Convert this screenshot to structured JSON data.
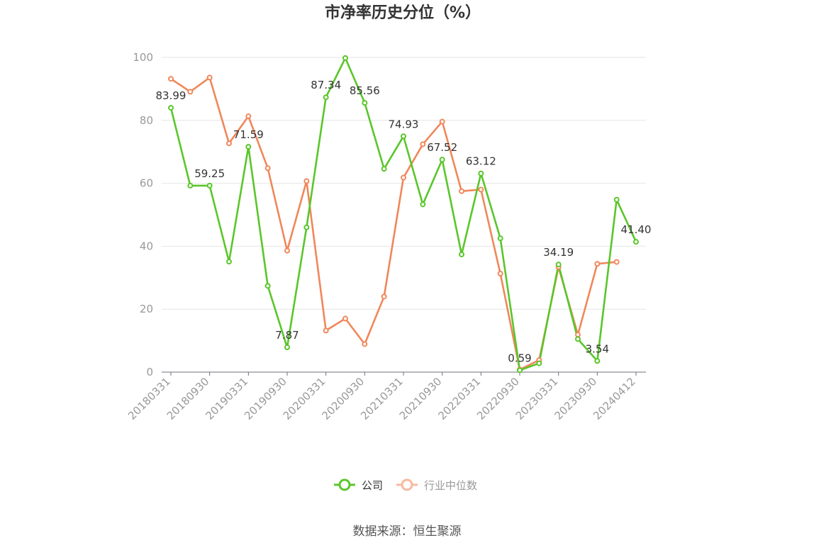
{
  "chart_data": {
    "type": "line",
    "title": "市净率历史分位（%）",
    "xlabel": "",
    "ylabel": "",
    "ylim": [
      0,
      100
    ],
    "yticks": [
      0,
      20,
      40,
      60,
      80,
      100
    ],
    "x": [
      "20180331",
      "20180630",
      "20180930",
      "20181231",
      "20190331",
      "20190630",
      "20190930",
      "20191231",
      "20200331",
      "20200630",
      "20200930",
      "20201231",
      "20210331",
      "20210630",
      "20210930",
      "20211231",
      "20220331",
      "20220630",
      "20220930",
      "20221231",
      "20230331",
      "20230630",
      "20230930",
      "20231231",
      "20240412"
    ],
    "xtick_labels": [
      "20180331",
      "20180930",
      "20190331",
      "20190930",
      "20200331",
      "20200930",
      "20210331",
      "20210930",
      "20220331",
      "20220930",
      "20230331",
      "20230930",
      "20240412"
    ],
    "series": [
      {
        "name": "公司",
        "color": "#5ac62a",
        "values": [
          83.99,
          59.25,
          59.25,
          35.1,
          71.59,
          27.4,
          7.87,
          46.0,
          87.34,
          99.8,
          85.56,
          64.6,
          74.93,
          53.3,
          67.52,
          37.4,
          63.12,
          42.5,
          0.59,
          2.8,
          34.19,
          10.5,
          3.54,
          54.8,
          41.4
        ],
        "labels": [
          "83.99",
          null,
          "59.25",
          null,
          "71.59",
          null,
          "7.87",
          null,
          "87.34",
          null,
          "85.56",
          null,
          "74.93",
          null,
          "67.52",
          null,
          "63.12",
          null,
          "0.59",
          null,
          "34.19",
          null,
          "3.54",
          null,
          "41.40"
        ]
      },
      {
        "name": "行业中位数",
        "color": "#f0875a",
        "values": [
          93.2,
          89.1,
          93.6,
          72.7,
          81.3,
          64.8,
          38.6,
          60.7,
          13.2,
          17.0,
          8.9,
          24.0,
          61.8,
          72.4,
          79.6,
          57.5,
          58.0,
          31.3,
          0.8,
          3.8,
          33.4,
          11.9,
          34.4,
          35.0,
          null
        ]
      }
    ],
    "grid": true,
    "legend_position": "bottom-center"
  },
  "legend": {
    "company": "公司",
    "industry": "行业中位数"
  },
  "source": "数据来源：恒生聚源"
}
